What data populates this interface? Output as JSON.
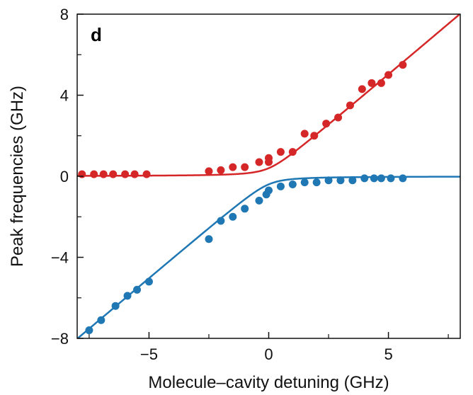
{
  "chart_data": {
    "type": "scatter",
    "panel_label": "d",
    "xlabel": "Molecule–cavity detuning (GHz)",
    "ylabel": "Peak frequencies (GHz)",
    "xlim": [
      -8,
      8
    ],
    "ylim": [
      -8,
      8
    ],
    "x_ticks": [
      {
        "value": -5,
        "label": "−5"
      },
      {
        "value": 0,
        "label": "0"
      },
      {
        "value": 5,
        "label": "5"
      }
    ],
    "x_minor_ticks": [
      -7.5,
      -2.5,
      2.5,
      7.5
    ],
    "y_ticks": [
      {
        "value": -8,
        "label": "−8"
      },
      {
        "value": -4,
        "label": "−4"
      },
      {
        "value": 0,
        "label": "0"
      },
      {
        "value": 4,
        "label": "4"
      },
      {
        "value": 8,
        "label": "8"
      }
    ],
    "y_minor_ticks": [
      -6,
      -2,
      2,
      6
    ],
    "grid": false,
    "legend": "none",
    "coupling_g": 0.4,
    "series": [
      {
        "color": "#d62728",
        "branch": "upper",
        "points": [
          {
            "x": -7.8,
            "y": 0.1
          },
          {
            "x": -7.3,
            "y": 0.1
          },
          {
            "x": -6.9,
            "y": 0.1
          },
          {
            "x": -6.5,
            "y": 0.1
          },
          {
            "x": -6.0,
            "y": 0.1
          },
          {
            "x": -5.6,
            "y": 0.1
          },
          {
            "x": -5.1,
            "y": 0.1
          },
          {
            "x": -2.5,
            "y": 0.25
          },
          {
            "x": -2.0,
            "y": 0.3
          },
          {
            "x": -1.5,
            "y": 0.45
          },
          {
            "x": -1.0,
            "y": 0.45
          },
          {
            "x": -0.4,
            "y": 0.7
          },
          {
            "x": 0.0,
            "y": 0.9
          },
          {
            "x": 0.0,
            "y": 0.7
          },
          {
            "x": 0.5,
            "y": 1.2
          },
          {
            "x": 1.0,
            "y": 1.2
          },
          {
            "x": 1.5,
            "y": 2.1
          },
          {
            "x": 1.9,
            "y": 2.0
          },
          {
            "x": 2.4,
            "y": 2.6
          },
          {
            "x": 2.9,
            "y": 2.9
          },
          {
            "x": 3.4,
            "y": 3.5
          },
          {
            "x": 3.9,
            "y": 4.3
          },
          {
            "x": 4.3,
            "y": 4.6
          },
          {
            "x": 4.7,
            "y": 4.6
          },
          {
            "x": 5.0,
            "y": 5.0
          },
          {
            "x": 5.6,
            "y": 5.5
          }
        ]
      },
      {
        "color": "#1f77b4",
        "branch": "lower",
        "points": [
          {
            "x": -7.5,
            "y": -7.6
          },
          {
            "x": -7.0,
            "y": -7.1
          },
          {
            "x": -6.4,
            "y": -6.4
          },
          {
            "x": -5.9,
            "y": -5.9
          },
          {
            "x": -5.5,
            "y": -5.6
          },
          {
            "x": -5.0,
            "y": -5.2
          },
          {
            "x": -2.5,
            "y": -3.1
          },
          {
            "x": -2.0,
            "y": -2.2
          },
          {
            "x": -1.5,
            "y": -2.0
          },
          {
            "x": -1.0,
            "y": -1.6
          },
          {
            "x": -0.4,
            "y": -1.2
          },
          {
            "x": -0.1,
            "y": -0.9
          },
          {
            "x": 0.0,
            "y": -0.7
          },
          {
            "x": 0.5,
            "y": -0.5
          },
          {
            "x": 1.0,
            "y": -0.4
          },
          {
            "x": 1.5,
            "y": -0.3
          },
          {
            "x": 2.0,
            "y": -0.3
          },
          {
            "x": 2.5,
            "y": -0.2
          },
          {
            "x": 3.0,
            "y": -0.2
          },
          {
            "x": 3.5,
            "y": -0.2
          },
          {
            "x": 4.0,
            "y": -0.1
          },
          {
            "x": 4.4,
            "y": -0.1
          },
          {
            "x": 4.7,
            "y": -0.1
          },
          {
            "x": 5.1,
            "y": -0.1
          },
          {
            "x": 5.6,
            "y": -0.1
          }
        ]
      }
    ]
  }
}
